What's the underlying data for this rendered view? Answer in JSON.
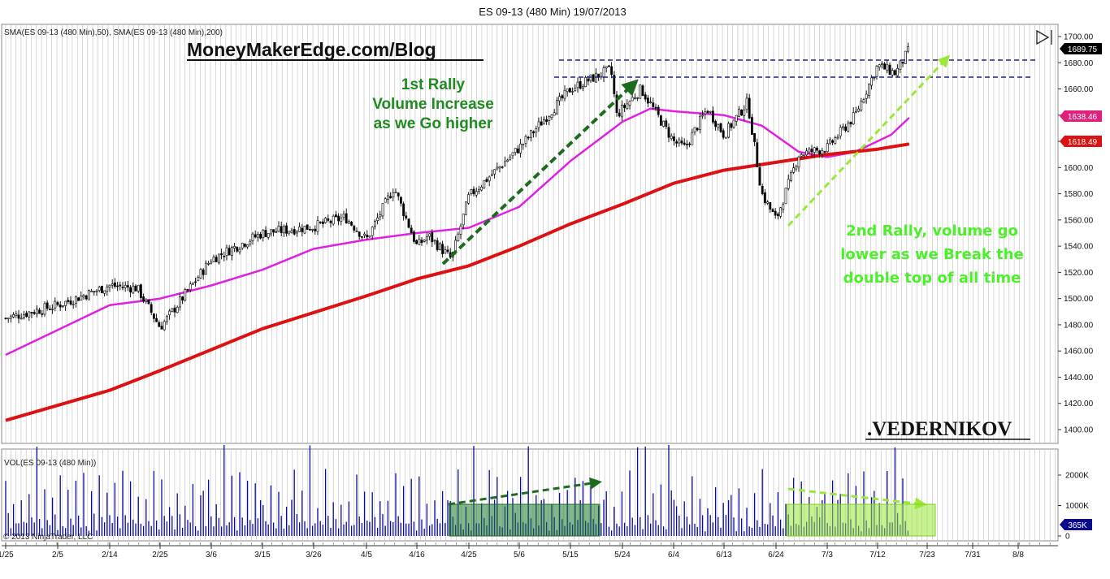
{
  "title": "ES 09-13 (480 Min)  19/07/2013",
  "price_panel_label": "SMA(ES 09-13 (480 Min),50), SMA(ES 09-13 (480 Min),200)",
  "volume_panel_label": "VOL(ES 09-13 (480 Min))",
  "copyright": "© 2013 NinjaTrader, LLC",
  "blog_text": "MoneyMakerEdge.com/Blog",
  "signature": ".VEDERNIKOV",
  "annotations": {
    "rally1": [
      "1st Rally",
      "Volume Increase",
      "as we Go higher"
    ],
    "rally2": [
      "2nd Rally, volume go",
      "lower as we Break the",
      "double top of all time"
    ]
  },
  "badges": {
    "last_price": "1689.75",
    "sma50": "1638.46",
    "sma200": "1618.49",
    "volume": "365K"
  },
  "colors": {
    "price_bars": "#000000",
    "sma50": "#e020e0",
    "sma200": "#dd1111",
    "volume_bars": "#0a0aa0",
    "dashed_resistance": "#1a237e",
    "arrow_rally1": "#1e6b1e",
    "arrow_rally2": "#9be836",
    "grid": "#bfbfbf",
    "badge_last": "#000000",
    "badge_sma50": "#e0207a",
    "badge_sma200": "#dd1111",
    "badge_volume": "#0a0a90"
  },
  "chart_data": [
    {
      "type": "candlestick",
      "title": "ES 09-13 (480 Min)  19/07/2013",
      "x_tick_labels": [
        "1/25",
        "2/5",
        "2/14",
        "2/25",
        "3/6",
        "3/15",
        "3/26",
        "4/5",
        "4/16",
        "4/25",
        "5/6",
        "5/15",
        "5/24",
        "6/4",
        "6/13",
        "6/24",
        "7/3",
        "7/12",
        "7/23",
        "7/31",
        "8/8"
      ],
      "y_tick_labels": [
        "1400.00",
        "1420.00",
        "1440.00",
        "1460.00",
        "1480.00",
        "1500.00",
        "1520.00",
        "1540.00",
        "1560.00",
        "1580.00",
        "1600.00",
        "1620.00",
        "1640.00",
        "1660.00",
        "1680.00",
        "1700.00"
      ],
      "ylim": [
        1390,
        1705
      ],
      "grid": true,
      "price_path": [
        [
          "1/25",
          1485
        ],
        [
          "2/5",
          1495
        ],
        [
          "2/14",
          1510
        ],
        [
          "2/20",
          1508
        ],
        [
          "2/25",
          1478
        ],
        [
          "2/28",
          1495
        ],
        [
          "3/6",
          1530
        ],
        [
          "3/15",
          1550
        ],
        [
          "3/26",
          1555
        ],
        [
          "4/1",
          1562
        ],
        [
          "4/5",
          1545
        ],
        [
          "4/11",
          1585
        ],
        [
          "4/16",
          1540
        ],
        [
          "4/18",
          1548
        ],
        [
          "4/22",
          1530
        ],
        [
          "4/25",
          1578
        ],
        [
          "5/6",
          1615
        ],
        [
          "5/15",
          1660
        ],
        [
          "5/22",
          1675
        ],
        [
          "5/23",
          1640
        ],
        [
          "5/28",
          1660
        ],
        [
          "6/4",
          1620
        ],
        [
          "6/6",
          1615
        ],
        [
          "6/10",
          1645
        ],
        [
          "6/13",
          1625
        ],
        [
          "6/18",
          1650
        ],
        [
          "6/21",
          1580
        ],
        [
          "6/24",
          1560
        ],
        [
          "6/28",
          1610
        ],
        [
          "7/3",
          1615
        ],
        [
          "7/8",
          1640
        ],
        [
          "7/12",
          1678
        ],
        [
          "7/16",
          1672
        ],
        [
          "7/19",
          1690
        ]
      ],
      "series": [
        {
          "name": "SMA(ES 09-13 (480 Min),50)",
          "points": [
            [
              "1/25",
              1457
            ],
            [
              "2/14",
              1495
            ],
            [
              "2/25",
              1500
            ],
            [
              "3/6",
              1510
            ],
            [
              "3/15",
              1522
            ],
            [
              "3/26",
              1538
            ],
            [
              "4/5",
              1545
            ],
            [
              "4/16",
              1550
            ],
            [
              "4/25",
              1554
            ],
            [
              "5/6",
              1570
            ],
            [
              "5/15",
              1605
            ],
            [
              "5/24",
              1635
            ],
            [
              "5/30",
              1645
            ],
            [
              "6/4",
              1643
            ],
            [
              "6/13",
              1640
            ],
            [
              "6/21",
              1632
            ],
            [
              "6/28",
              1612
            ],
            [
              "7/3",
              1608
            ],
            [
              "7/8",
              1612
            ],
            [
              "7/15",
              1625
            ],
            [
              "7/19",
              1638
            ]
          ]
        },
        {
          "name": "SMA(ES 09-13 (480 Min),200)",
          "points": [
            [
              "1/25",
              1407
            ],
            [
              "2/14",
              1430
            ],
            [
              "2/25",
              1445
            ],
            [
              "3/15",
              1477
            ],
            [
              "4/5",
              1502
            ],
            [
              "4/16",
              1515
            ],
            [
              "4/25",
              1525
            ],
            [
              "5/6",
              1540
            ],
            [
              "5/15",
              1557
            ],
            [
              "5/24",
              1572
            ],
            [
              "6/4",
              1588
            ],
            [
              "6/13",
              1598
            ],
            [
              "6/24",
              1604
            ],
            [
              "7/3",
              1610
            ],
            [
              "7/12",
              1614
            ],
            [
              "7/19",
              1618
            ]
          ]
        }
      ],
      "resistance_levels": [
        1681,
        1668
      ]
    },
    {
      "type": "bar",
      "title": "VOL(ES 09-13 (480 Min))",
      "y_tick_labels": [
        "0",
        "1000K",
        "2000K"
      ],
      "ylim": [
        0,
        2700
      ],
      "last_value_label": "365K"
    }
  ]
}
